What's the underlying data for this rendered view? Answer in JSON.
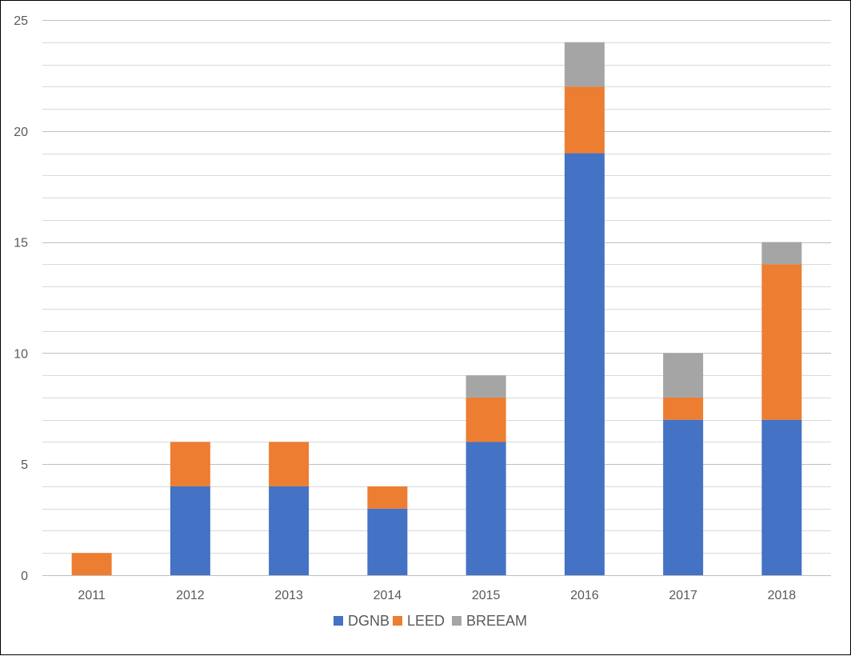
{
  "chart_data": {
    "type": "bar",
    "stacked": true,
    "categories": [
      "2011",
      "2012",
      "2013",
      "2014",
      "2015",
      "2016",
      "2017",
      "2018"
    ],
    "series": [
      {
        "name": "DGNB",
        "values": [
          0,
          4,
          4,
          3,
          6,
          19,
          7,
          7
        ],
        "color": "#4472C4"
      },
      {
        "name": "LEED",
        "values": [
          1,
          2,
          2,
          1,
          2,
          3,
          1,
          7
        ],
        "color": "#ED7D31"
      },
      {
        "name": "BREEAM",
        "values": [
          0,
          0,
          0,
          0,
          1,
          2,
          2,
          1
        ],
        "color": "#A5A5A5"
      }
    ],
    "title": "",
    "xlabel": "",
    "ylabel": "",
    "ylim": [
      0,
      25
    ],
    "yticks": [
      "0",
      "5",
      "10",
      "15",
      "20",
      "25"
    ],
    "grid": true,
    "minor_grid": true,
    "legend_position": "bottom"
  }
}
